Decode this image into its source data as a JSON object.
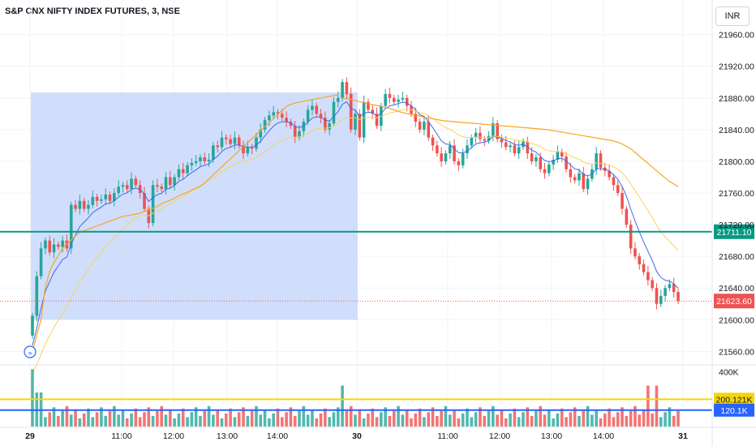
{
  "header": {
    "title": "S&P CNX NIFTY INDEX FUTURES, 3, NSE",
    "currency": "INR"
  },
  "colors": {
    "up": "#26a69a",
    "down": "#ef5350",
    "vwap": "#f5a623",
    "ema": "#3b6be8",
    "range_fill": "#c8d8fb",
    "hline": "#089981",
    "yellow": "#f5d50a",
    "blue": "#2962ff"
  },
  "chart_data": {
    "type": "candlestick",
    "title": "S&P CNX NIFTY INDEX FUTURES, 3, NSE",
    "ylim": [
      21545,
      21975
    ],
    "y_ticks": [
      21560,
      21600,
      21640,
      21680,
      21720,
      21760,
      21800,
      21840,
      21880,
      21920,
      21960
    ],
    "x_ticks": [
      "29",
      "11:00",
      "12:00",
      "13:00",
      "14:00",
      "30",
      "11:00",
      "12:00",
      "13:00",
      "14:00",
      "31"
    ],
    "price_labels": {
      "horizontal_line": "21711.10",
      "last_price": "21623.60"
    },
    "horizontal_line_value": 21711.1,
    "last_price_value": 21623.6,
    "price_range_box": {
      "from": 21600,
      "to": 21887
    },
    "volume": {
      "axis_label": "400K",
      "max": 440000,
      "yellow_level_label": "200.121K",
      "yellow_level": 200121,
      "blue_level_label": "120.1K",
      "blue_level": 120100
    },
    "closes": [
      21605,
      21655,
      21690,
      21700,
      21685,
      21695,
      21692,
      21700,
      21690,
      21745,
      21740,
      21750,
      21740,
      21745,
      21755,
      21750,
      21752,
      21758,
      21750,
      21760,
      21768,
      21770,
      21765,
      21778,
      21770,
      21760,
      21740,
      21722,
      21770,
      21768,
      21765,
      21780,
      21770,
      21780,
      21790,
      21785,
      21795,
      21798,
      21800,
      21805,
      21800,
      21802,
      21820,
      21818,
      21830,
      21828,
      21822,
      21830,
      21820,
      21810,
      21818,
      21816,
      21830,
      21840,
      21852,
      21858,
      21862,
      21860,
      21855,
      21850,
      21845,
      21830,
      21838,
      21850,
      21865,
      21870,
      21860,
      21855,
      21840,
      21848,
      21875,
      21880,
      21900,
      21885,
      21840,
      21860,
      21830,
      21875,
      21865,
      21860,
      21845,
      21870,
      21885,
      21880,
      21875,
      21878,
      21880,
      21870,
      21860,
      21850,
      21840,
      21850,
      21830,
      21820,
      21810,
      21800,
      21810,
      21820,
      21800,
      21795,
      21810,
      21820,
      21830,
      21836,
      21828,
      21826,
      21832,
      21848,
      21828,
      21824,
      21818,
      21820,
      21810,
      21818,
      21825,
      21810,
      21800,
      21805,
      21790,
      21785,
      21796,
      21802,
      21812,
      21806,
      21790,
      21780,
      21776,
      21785,
      21765,
      21778,
      21790,
      21810,
      21792,
      21788,
      21780,
      21770,
      21760,
      21740,
      21720,
      21690,
      21680,
      21670,
      21660,
      21650,
      21640,
      21620,
      21630,
      21640,
      21645,
      21635,
      21623.6
    ],
    "vwap_1": [
      21560,
      21580,
      21600,
      21640,
      21660,
      21672,
      21680,
      21690,
      21695,
      21700,
      21705,
      21710,
      21712,
      21714,
      21716,
      21718,
      21720,
      21722,
      21724,
      21726,
      21728,
      21730,
      21731,
      21732,
      21733,
      21734,
      21736,
      21738,
      21740,
      21742,
      21745,
      21748,
      21750,
      21752,
      21755,
      21758,
      21760,
      21762,
      21765,
      21767,
      21770,
      21775,
      21780,
      21785,
      21790,
      21795,
      21800,
      21805,
      21810,
      21815,
      21820,
      21825,
      21830,
      21835,
      21840,
      21845,
      21850,
      21855,
      21860,
      21865,
      21870,
      21872,
      21874,
      21875,
      21876,
      21877,
      21878,
      21879,
      21880,
      21881,
      21882,
      21883,
      21884
    ],
    "vwap_2": [
      21880,
      21878,
      21875,
      21872,
      21870,
      21867,
      21863,
      21860,
      21858,
      21855,
      21853,
      21851,
      21850,
      21849,
      21848,
      21847,
      21846,
      21845,
      21844,
      21843,
      21842,
      21841,
      21840,
      21838,
      21836,
      21834,
      21832,
      21830,
      21828,
      21826,
      21822,
      21815,
      21805,
      21795,
      21785,
      21775,
      21768
    ]
  }
}
